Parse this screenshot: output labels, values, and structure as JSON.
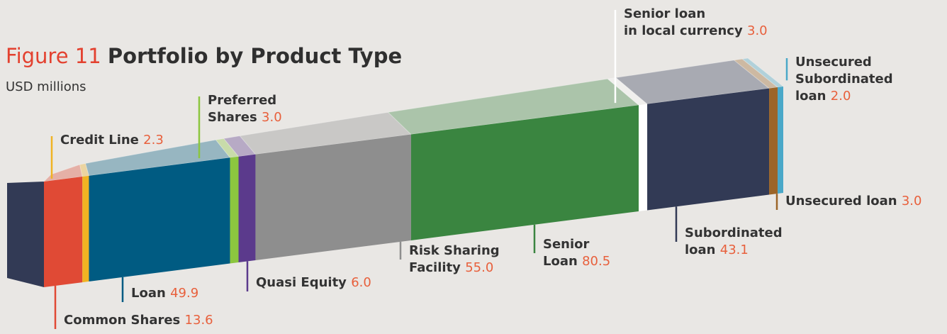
{
  "chart_data": {
    "type": "stacked-bar-3d",
    "title_prefix": "Figure 11",
    "title": "Portfolio by Product Type",
    "subtitle": "USD millions",
    "categories": [
      "Common Shares",
      "Credit Line",
      "Loan",
      "Preferred\nShares",
      "Quasi Equity",
      "Risk Sharing\nFacility",
      "Senior\nLoan",
      "Senior loan\nin local currency",
      "Subordinated\nloan",
      "Unsecured loan",
      "Unsecured\nSubordinated\nloan"
    ],
    "values": [
      13.6,
      2.3,
      49.9,
      3,
      6,
      55,
      80.5,
      3,
      43.1,
      3,
      2
    ],
    "value_labels": [
      "13.6",
      "2.3",
      "49.9",
      "3.0",
      "6.0",
      "55.0",
      "80.5",
      "3.0",
      "43.1",
      "3.0",
      "2.0"
    ],
    "colors": [
      "#e04a35",
      "#f0b323",
      "#005b82",
      "#8cc63f",
      "#5b3a8c",
      "#8e8e8e",
      "#3a8540",
      "#ffffff",
      "#323a55",
      "#9c6528",
      "#4aa8c8"
    ]
  }
}
